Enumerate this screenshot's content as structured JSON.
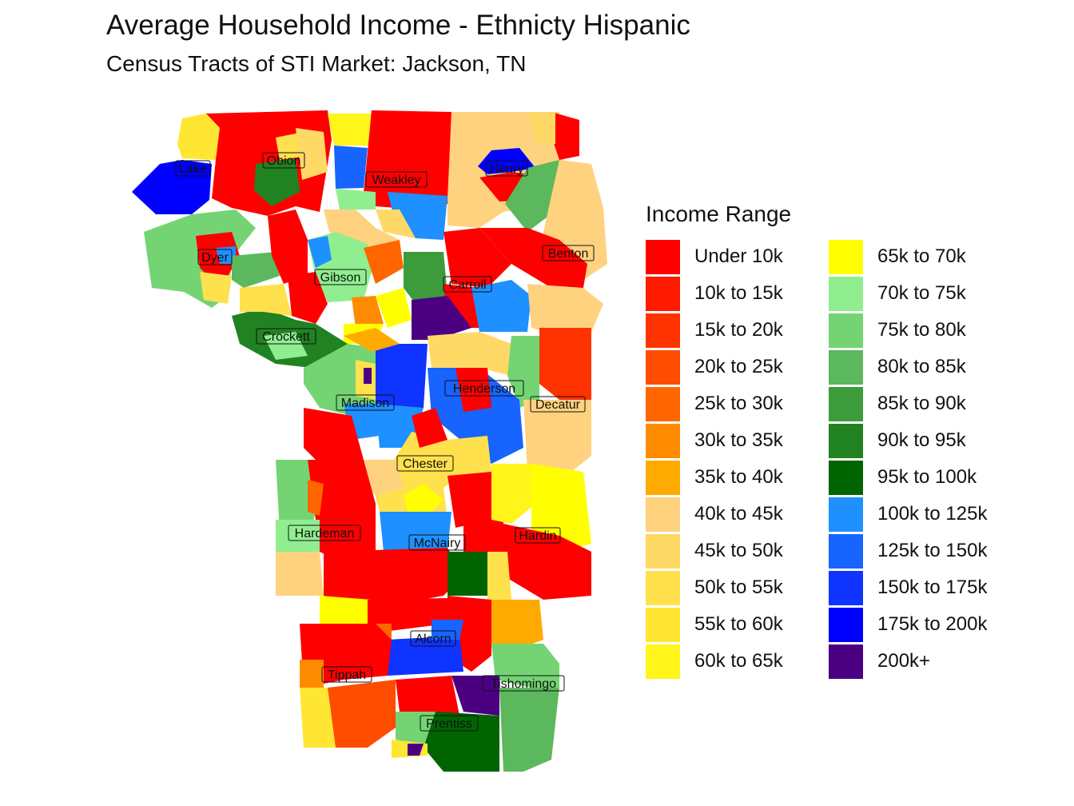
{
  "title": "Average Household Income - Ethnicty Hispanic",
  "subtitle": "Census Tracts of STI Market: Jackson, TN",
  "legend": {
    "title": "Income Range",
    "items": [
      {
        "label": "Under 10k",
        "color": "#ff0000"
      },
      {
        "label": "10k to 15k",
        "color": "#ff1a00"
      },
      {
        "label": "15k to 20k",
        "color": "#ff3300"
      },
      {
        "label": "20k to 25k",
        "color": "#ff4d00"
      },
      {
        "label": "25k to 30k",
        "color": "#ff6600"
      },
      {
        "label": "30k to 35k",
        "color": "#ff8c00"
      },
      {
        "label": "35k to 40k",
        "color": "#ffaa00"
      },
      {
        "label": "40k to 45k",
        "color": "#ffd27f"
      },
      {
        "label": "45k to 50k",
        "color": "#ffd966"
      },
      {
        "label": "50k to 55k",
        "color": "#ffe14d"
      },
      {
        "label": "55k to 60k",
        "color": "#ffe633"
      },
      {
        "label": "60k to 65k",
        "color": "#fff51a"
      },
      {
        "label": "65k to 70k",
        "color": "#ffff00"
      },
      {
        "label": "70k to 75k",
        "color": "#90ee90"
      },
      {
        "label": "75k to 80k",
        "color": "#74d474"
      },
      {
        "label": "80k to 85k",
        "color": "#5cb85c"
      },
      {
        "label": "85k to 90k",
        "color": "#3c9c3c"
      },
      {
        "label": "90k to 95k",
        "color": "#218221"
      },
      {
        "label": "95k to 100k",
        "color": "#006400"
      },
      {
        "label": "100k to 125k",
        "color": "#1e90ff"
      },
      {
        "label": "125k to 150k",
        "color": "#1764ff"
      },
      {
        "label": "150k to 175k",
        "color": "#0f34ff"
      },
      {
        "label": "175k to 200k",
        "color": "#0000ff"
      },
      {
        "label": "200k+",
        "color": "#4b0082"
      }
    ]
  },
  "counties": [
    "Lake",
    "Obion",
    "Weakley",
    "Henry",
    "Dyer",
    "Benton",
    "Gibson",
    "Carroll",
    "Crockett",
    "Henderson",
    "Madison",
    "Decatur",
    "Chester",
    "Hardeman",
    "McNairy",
    "Hardin",
    "Alcorn",
    "Tippah",
    "Tishomingo",
    "Prentiss"
  ]
}
